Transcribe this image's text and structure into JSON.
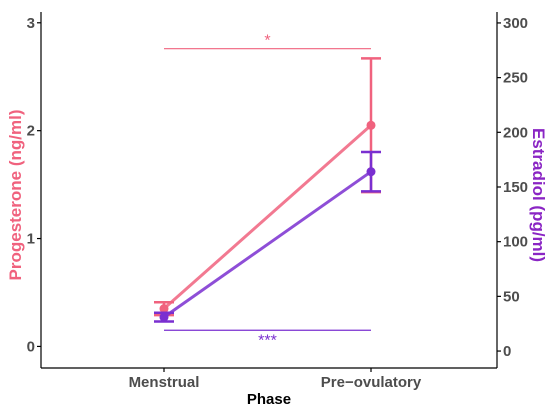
{
  "chart_data": {
    "type": "line",
    "xlabel": "Phase",
    "categories": [
      "Menstrual",
      "Pre−ovulatory"
    ],
    "y_left": {
      "label": "Progesterone (ng/ml)",
      "range": [
        -0.2,
        3.1
      ],
      "ticks": [
        0,
        1,
        2,
        3
      ],
      "color": "#f0627e"
    },
    "y_right": {
      "label": "Estradiol (pg/ml)",
      "range": [
        -15.5,
        310
      ],
      "ticks": [
        0,
        50,
        100,
        150,
        200,
        250,
        300
      ],
      "color": "#8a25c4"
    },
    "series": [
      {
        "axis": "left",
        "color": "#f0627e",
        "values": [
          0.35,
          2.05
        ],
        "error": [
          0.06,
          0.62
        ]
      },
      {
        "axis": "right",
        "color": "#7a2fd0",
        "values": [
          31,
          164
        ],
        "error": [
          4,
          18
        ]
      }
    ],
    "annotations": [
      {
        "text": "*",
        "y": 2.76,
        "axis": "left",
        "color": "#f0627e"
      },
      {
        "text": "***",
        "y": 19,
        "axis": "right",
        "color": "#7a2fd0"
      }
    ],
    "grid": false,
    "legend": "none"
  }
}
